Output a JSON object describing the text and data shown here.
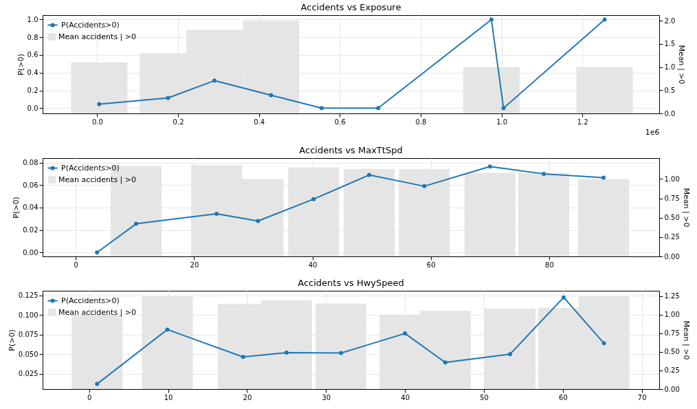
{
  "chart_data": [
    {
      "type": "line",
      "title": "Accidents vs Exposure",
      "ylabel": "P(>0)",
      "y2label": "Mean | >0",
      "annotations": [
        "1e6"
      ],
      "grid": true,
      "legend": "top left",
      "marker": "circle",
      "xlim": [
        -0.135,
        1.39
      ],
      "xticks": [
        {
          "value": 0,
          "label": "0.0"
        },
        0.2,
        0.4,
        0.6,
        0.8,
        {
          "value": 1,
          "label": "1.0"
        },
        1.2
      ],
      "ylim": [
        -0.06,
        1.05
      ],
      "yticks": [
        {
          "value": 0,
          "label": "0.0"
        },
        0.2,
        0.4,
        0.6,
        0.8,
        {
          "value": 1,
          "label": "1.0"
        }
      ],
      "y2lim": [
        0,
        2.12
      ],
      "y2ticks": [
        {
          "value": 0,
          "label": "0.0"
        },
        0.5,
        {
          "value": 1,
          "label": "1.0"
        },
        1.5,
        {
          "value": 2,
          "label": "2.0"
        }
      ],
      "series": [
        {
          "name": "Mean accidents | >0",
          "type": "bar",
          "axis": "y2",
          "color": "#e5e5e5",
          "x": [
            0.005,
            0.175,
            0.29,
            0.43,
            0.975,
            1.255
          ],
          "values": [
            1.1,
            1.3,
            1.8,
            2.0,
            1.0,
            1.0
          ]
        },
        {
          "name": "P(Accidents>0)",
          "type": "line",
          "color": "#1f77b4",
          "x": [
            0.005,
            0.175,
            0.29,
            0.43,
            0.555,
            0.695,
            0.975,
            1.005,
            1.255
          ],
          "values": [
            0.045,
            0.115,
            0.31,
            0.145,
            0,
            0,
            1.0,
            0,
            1.0
          ]
        }
      ]
    },
    {
      "type": "line",
      "title": "Accidents vs MaxTtSpd",
      "ylabel": "P(>0)",
      "y2label": "Mean | >0",
      "grid": true,
      "legend": "top left",
      "marker": "circle",
      "xlim": [
        -5.6,
        98.6
      ],
      "xticks": [
        0,
        20,
        40,
        60,
        80
      ],
      "ylim": [
        -0.0035,
        0.084
      ],
      "yticks": [
        {
          "value": 0,
          "label": "0.00"
        },
        {
          "value": 0.02,
          "label": "0.02"
        },
        {
          "value": 0.04,
          "label": "0.04"
        },
        {
          "value": 0.06,
          "label": "0.06"
        },
        {
          "value": 0.08,
          "label": "0.08"
        }
      ],
      "y2lim": [
        0,
        1.27
      ],
      "y2ticks": [
        {
          "value": 0,
          "label": "0.00"
        },
        0.25,
        {
          "value": 0.5,
          "label": "0.50"
        },
        0.75,
        {
          "value": 1,
          "label": "1.00"
        }
      ],
      "series": [
        {
          "name": "Mean accidents | >0",
          "type": "bar",
          "axis": "y2",
          "color": "#e5e5e5",
          "x": [
            10.2,
            23.8,
            30.8,
            40.2,
            49.6,
            58.9,
            70.0,
            79.1,
            89.2
          ],
          "values": [
            1.17,
            1.18,
            1.0,
            1.15,
            1.13,
            1.13,
            1.08,
            1.08,
            1.0
          ]
        },
        {
          "name": "P(Accidents>0)",
          "type": "line",
          "color": "#1f77b4",
          "x": [
            3.6,
            10.2,
            23.8,
            30.8,
            40.2,
            49.6,
            58.9,
            70.0,
            79.1,
            89.2
          ],
          "values": [
            0,
            0.0255,
            0.0345,
            0.028,
            0.0475,
            0.069,
            0.059,
            0.0765,
            0.07,
            0.0665
          ]
        }
      ]
    },
    {
      "type": "line",
      "title": "Accidents vs HwySpeed",
      "ylabel": "P(>0)",
      "y2label": "Mean | >0",
      "grid": true,
      "legend": "top left",
      "marker": "circle",
      "xlim": [
        -5.9,
        72.2
      ],
      "xticks": [
        0,
        10,
        20,
        30,
        40,
        50,
        60,
        70
      ],
      "ylim": [
        0.0055,
        0.131
      ],
      "yticks": [
        0.025,
        {
          "value": 0.05,
          "label": "0.050"
        },
        0.075,
        {
          "value": 0.1,
          "label": "0.100"
        },
        0.125
      ],
      "y2lim": [
        0,
        1.32
      ],
      "y2ticks": [
        {
          "value": 0,
          "label": "0.00"
        },
        0.25,
        {
          "value": 0.5,
          "label": "0.50"
        },
        0.75,
        {
          "value": 1,
          "label": "1.00"
        },
        1.25
      ],
      "series": [
        {
          "name": "Mean accidents | >0",
          "type": "bar",
          "axis": "y2",
          "color": "#e5e5e5",
          "x": [
            1.0,
            9.9,
            19.5,
            25.0,
            31.9,
            40.0,
            45.1,
            53.3,
            60.1,
            65.2
          ],
          "values": [
            1.0,
            1.25,
            1.14,
            1.19,
            1.15,
            1.0,
            1.05,
            1.08,
            1.09,
            1.25
          ]
        },
        {
          "name": "P(Accidents>0)",
          "type": "line",
          "color": "#1f77b4",
          "x": [
            1.0,
            9.9,
            19.5,
            25.0,
            31.9,
            40.0,
            45.1,
            53.3,
            60.1,
            65.2
          ],
          "values": [
            0.012,
            0.0815,
            0.0465,
            0.052,
            0.0515,
            0.0765,
            0.0395,
            0.05,
            0.1225,
            0.064
          ]
        }
      ]
    }
  ]
}
